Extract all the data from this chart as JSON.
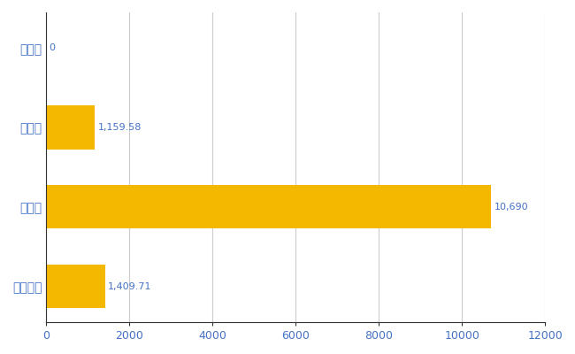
{
  "categories": [
    "椎葉村",
    "県平均",
    "県最大",
    "全国平均"
  ],
  "values": [
    0,
    1159.58,
    10690,
    1409.71
  ],
  "labels": [
    "0",
    "1,159.58",
    "10,690",
    "1,409.71"
  ],
  "bar_color": "#F5B800",
  "label_color": "#4472C4",
  "tick_color": "#4472C4",
  "background_color": "#ffffff",
  "grid_color": "#cccccc",
  "xlim": [
    0,
    12000
  ],
  "xticks": [
    0,
    2000,
    4000,
    6000,
    8000,
    10000,
    12000
  ],
  "xtick_labels": [
    "0",
    "2000",
    "4000",
    "6000",
    "8000",
    "10000",
    "12000"
  ],
  "bar_height": 0.55
}
